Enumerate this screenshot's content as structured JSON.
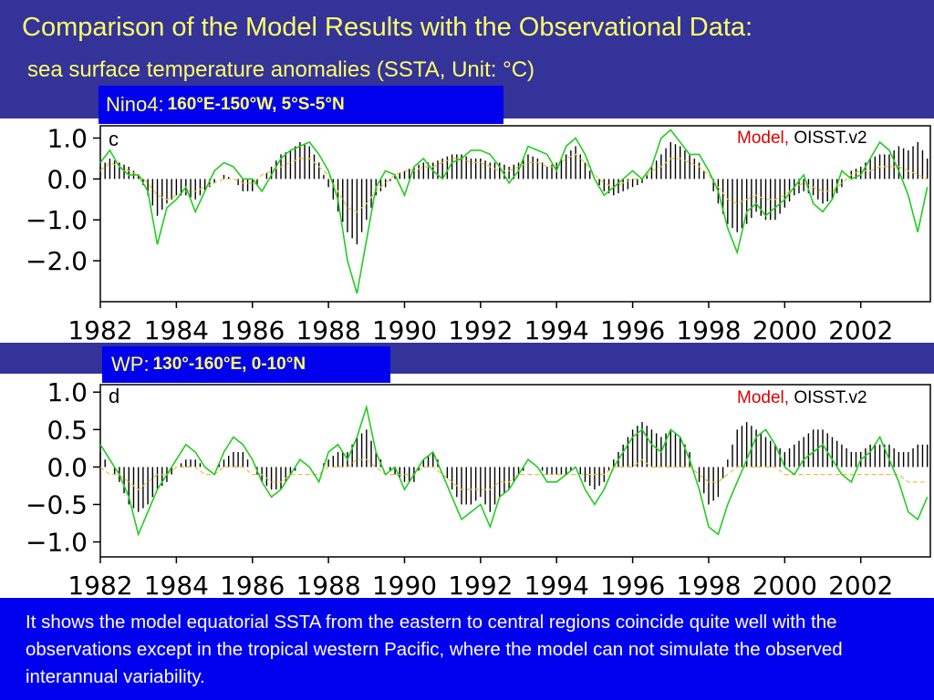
{
  "header": {
    "title": "Comparison of the Model Results with the Observational Data:",
    "subtitle": "sea surface temperature anomalies (SSTA, Unit: °C)"
  },
  "footer": {
    "text": "It shows the model equatorial SSTA from the eastern to central regions coincide quite well with the observations except in the tropical western Pacific, where the model can not simulate the observed interannual variability."
  },
  "colors": {
    "header_bg": "#33339a",
    "box_bg": "#0000ee",
    "title_text": "#ffff66",
    "model_label": "#dd0000",
    "obs_line": "#22cc22",
    "climatology_dash": "#e8c040",
    "bars": "#000000"
  },
  "chart_data": [
    {
      "type": "bar",
      "region_name": "Nino4:",
      "region_coords": "160°E-150°W, 5°S-5°N",
      "panel_letter": "c",
      "legend": {
        "model": "Model,",
        "obs": "OISST.v2"
      },
      "x_ticks": [
        "1982",
        "1984",
        "1986",
        "1988",
        "1990",
        "1992",
        "1994",
        "1996",
        "1998",
        "2000",
        "2002"
      ],
      "y_ticks": [
        1.0,
        0.0,
        -1.0,
        -2.0
      ],
      "y_tick_labels": [
        "1.0",
        "0.0",
        "−1.0",
        "−2.0"
      ],
      "xlim": [
        1982,
        2003.83
      ],
      "ylim": [
        -3.0,
        1.3
      ],
      "grid": false,
      "bar_step_years": 0.25,
      "obs_x": [
        1982,
        1982.25,
        1982.5,
        1982.75,
        1983,
        1983.25,
        1983.5,
        1983.75,
        1984,
        1984.25,
        1984.5,
        1984.75,
        1985,
        1985.25,
        1985.5,
        1985.75,
        1986,
        1986.25,
        1986.5,
        1986.75,
        1987,
        1987.25,
        1987.5,
        1987.75,
        1988,
        1988.25,
        1988.5,
        1988.75,
        1989,
        1989.25,
        1989.5,
        1989.75,
        1990,
        1990.25,
        1990.5,
        1990.75,
        1991,
        1991.25,
        1991.5,
        1991.75,
        1992,
        1992.25,
        1992.5,
        1992.75,
        1993,
        1993.25,
        1993.5,
        1993.75,
        1994,
        1994.25,
        1994.5,
        1994.75,
        1995,
        1995.25,
        1995.5,
        1995.75,
        1996,
        1996.25,
        1996.5,
        1996.75,
        1997,
        1997.25,
        1997.5,
        1997.75,
        1998,
        1998.25,
        1998.5,
        1998.75,
        1999,
        1999.25,
        1999.5,
        1999.75,
        2000,
        2000.25,
        2000.5,
        2000.75,
        2001,
        2001.25,
        2001.5,
        2001.75,
        2002,
        2002.25,
        2002.5,
        2002.75,
        2003,
        2003.25,
        2003.5,
        2003.75
      ],
      "obs_y": [
        0.4,
        0.7,
        0.3,
        0.1,
        0.1,
        -0.3,
        -1.6,
        -0.7,
        -0.5,
        -0.2,
        -0.8,
        -0.3,
        0.2,
        0.4,
        0.3,
        0.0,
        0.0,
        -0.3,
        0.1,
        0.5,
        0.7,
        0.8,
        0.9,
        0.6,
        0.2,
        -0.5,
        -2.0,
        -2.8,
        -1.5,
        -0.2,
        0.2,
        0.1,
        -0.4,
        0.3,
        0.5,
        0.2,
        0.0,
        0.4,
        0.5,
        0.7,
        0.7,
        0.6,
        0.3,
        -0.1,
        0.2,
        0.8,
        0.7,
        0.6,
        0.2,
        0.8,
        1.0,
        0.6,
        0.0,
        -0.4,
        -0.2,
        0.0,
        0.2,
        0.0,
        0.3,
        1.0,
        1.2,
        0.9,
        0.6,
        0.6,
        0.2,
        -0.3,
        -1.2,
        -1.8,
        -0.8,
        -0.6,
        -0.9,
        -0.7,
        -0.5,
        -0.2,
        0.1,
        -0.6,
        -0.8,
        -0.5,
        0.2,
        0.0,
        0.1,
        0.5,
        0.9,
        0.7,
        0.2,
        -0.4,
        -1.3,
        -0.2
      ],
      "model_y": [
        0.3,
        0.5,
        0.4,
        0.3,
        0.1,
        -0.4,
        -0.9,
        -0.6,
        -0.4,
        -0.4,
        -0.5,
        -0.3,
        -0.1,
        0.1,
        0.0,
        -0.3,
        -0.3,
        0.0,
        0.3,
        0.6,
        0.7,
        0.9,
        0.8,
        0.4,
        -0.2,
        -0.8,
        -1.3,
        -1.6,
        -1.0,
        -0.4,
        -0.2,
        0.1,
        0.2,
        0.3,
        0.4,
        0.4,
        0.5,
        0.6,
        0.6,
        0.5,
        0.5,
        0.4,
        0.4,
        0.3,
        0.4,
        0.6,
        0.5,
        0.3,
        0.4,
        0.6,
        0.8,
        0.4,
        0.0,
        -0.3,
        -0.4,
        -0.3,
        -0.2,
        -0.1,
        0.3,
        0.6,
        0.9,
        0.8,
        0.6,
        0.4,
        0.0,
        -0.6,
        -1.1,
        -1.3,
        -1.1,
        -0.8,
        -1.0,
        -1.0,
        -0.7,
        -0.4,
        -0.3,
        -0.4,
        -0.6,
        -0.5,
        -0.2,
        0.2,
        0.3,
        0.5,
        0.6,
        0.6,
        0.8,
        0.7,
        0.9,
        0.5
      ],
      "clim_y": [
        0.2,
        0.4,
        0.3,
        0.2,
        0.1,
        -0.1,
        -0.4,
        -0.5,
        -0.4,
        -0.3,
        -0.3,
        -0.2,
        -0.1,
        0.0,
        0.0,
        -0.1,
        -0.1,
        0.1,
        0.2,
        0.3,
        0.4,
        0.5,
        0.5,
        0.3,
        0.1,
        -0.3,
        -0.7,
        -0.8,
        -0.6,
        -0.3,
        -0.1,
        0.1,
        0.2,
        0.2,
        0.3,
        0.3,
        0.4,
        0.5,
        0.5,
        0.4,
        0.4,
        0.3,
        0.2,
        0.2,
        0.3,
        0.4,
        0.4,
        0.3,
        0.3,
        0.5,
        0.6,
        0.4,
        0.1,
        -0.1,
        -0.2,
        -0.1,
        0.0,
        0.0,
        0.2,
        0.3,
        0.5,
        0.5,
        0.4,
        0.3,
        0.1,
        -0.2,
        -0.5,
        -0.6,
        -0.5,
        -0.4,
        -0.5,
        -0.5,
        -0.4,
        -0.2,
        -0.1,
        -0.2,
        -0.3,
        -0.3,
        -0.1,
        0.1,
        0.2,
        0.2,
        0.3,
        0.3,
        0.3,
        0.2,
        0.1,
        0.0
      ]
    },
    {
      "type": "bar",
      "region_name": "WP:",
      "region_coords": "130°-160°E, 0-10°N",
      "panel_letter": "d",
      "legend": {
        "model": "Model,",
        "obs": "OISST.v2"
      },
      "x_ticks": [
        "1982",
        "1984",
        "1986",
        "1988",
        "1990",
        "1992",
        "1994",
        "1996",
        "1998",
        "2000",
        "2002"
      ],
      "y_ticks": [
        1.0,
        0.5,
        0.0,
        -0.5,
        -1.0
      ],
      "y_tick_labels": [
        "1.0",
        "0.5",
        "0.0",
        "−0.5",
        "−1.0"
      ],
      "xlim": [
        1982,
        2003.83
      ],
      "ylim": [
        -1.2,
        1.1
      ],
      "grid": false,
      "bar_step_years": 0.25,
      "obs_x": [
        1982,
        1982.25,
        1982.5,
        1982.75,
        1983,
        1983.25,
        1983.5,
        1983.75,
        1984,
        1984.25,
        1984.5,
        1984.75,
        1985,
        1985.25,
        1985.5,
        1985.75,
        1986,
        1986.25,
        1986.5,
        1986.75,
        1987,
        1987.25,
        1987.5,
        1987.75,
        1988,
        1988.25,
        1988.5,
        1988.75,
        1989,
        1989.25,
        1989.5,
        1989.75,
        1990,
        1990.25,
        1990.5,
        1990.75,
        1991,
        1991.25,
        1991.5,
        1991.75,
        1992,
        1992.25,
        1992.5,
        1992.75,
        1993,
        1993.25,
        1993.5,
        1993.75,
        1994,
        1994.25,
        1994.5,
        1994.75,
        1995,
        1995.25,
        1995.5,
        1995.75,
        1996,
        1996.25,
        1996.5,
        1996.75,
        1997,
        1997.25,
        1997.5,
        1997.75,
        1998,
        1998.25,
        1998.5,
        1998.75,
        1999,
        1999.25,
        1999.5,
        1999.75,
        2000,
        2000.25,
        2000.5,
        2000.75,
        2001,
        2001.25,
        2001.5,
        2001.75,
        2002,
        2002.25,
        2002.5,
        2002.75,
        2003,
        2003.25,
        2003.5,
        2003.75
      ],
      "obs_y": [
        0.3,
        0.1,
        -0.1,
        -0.4,
        -0.9,
        -0.6,
        -0.3,
        -0.1,
        0.1,
        0.3,
        0.2,
        0.0,
        -0.1,
        0.2,
        0.4,
        0.3,
        0.1,
        -0.2,
        -0.4,
        -0.3,
        -0.1,
        0.1,
        0.0,
        -0.2,
        0.2,
        0.3,
        0.1,
        0.4,
        0.8,
        0.2,
        -0.1,
        0.0,
        -0.3,
        -0.1,
        0.1,
        0.2,
        -0.1,
        -0.4,
        -0.7,
        -0.6,
        -0.5,
        -0.8,
        -0.4,
        -0.3,
        -0.1,
        0.1,
        0.0,
        -0.2,
        -0.2,
        -0.1,
        0.0,
        -0.3,
        -0.5,
        -0.3,
        0.0,
        0.2,
        0.4,
        0.5,
        0.3,
        0.2,
        0.5,
        0.4,
        0.1,
        -0.3,
        -0.8,
        -0.9,
        -0.5,
        -0.2,
        0.1,
        0.4,
        0.5,
        0.3,
        0.0,
        -0.1,
        0.1,
        0.2,
        0.3,
        0.1,
        -0.1,
        -0.2,
        0.1,
        0.2,
        0.4,
        0.1,
        -0.2,
        -0.6,
        -0.7,
        -0.4
      ],
      "model_y": [
        0.2,
        0.0,
        -0.2,
        -0.5,
        -0.6,
        -0.5,
        -0.3,
        -0.2,
        0.0,
        0.1,
        0.1,
        0.0,
        0.0,
        0.1,
        0.2,
        0.2,
        0.0,
        -0.2,
        -0.3,
        -0.3,
        -0.1,
        0.0,
        0.0,
        0.0,
        0.1,
        0.2,
        0.2,
        0.4,
        0.5,
        0.2,
        0.0,
        -0.1,
        -0.2,
        -0.2,
        0.1,
        0.2,
        0.0,
        -0.3,
        -0.5,
        -0.5,
        -0.4,
        -0.6,
        -0.4,
        -0.3,
        -0.1,
        0.0,
        0.0,
        -0.1,
        -0.1,
        -0.1,
        0.0,
        -0.2,
        -0.3,
        -0.2,
        0.1,
        0.3,
        0.5,
        0.6,
        0.5,
        0.4,
        0.5,
        0.4,
        0.2,
        -0.2,
        -0.5,
        -0.4,
        0.1,
        0.5,
        0.6,
        0.5,
        0.4,
        0.3,
        0.2,
        0.3,
        0.4,
        0.5,
        0.5,
        0.4,
        0.3,
        0.2,
        0.2,
        0.3,
        0.3,
        0.3,
        0.2,
        0.2,
        0.3,
        0.3
      ],
      "clim_y": [
        0.0,
        -0.1,
        -0.1,
        -0.2,
        -0.3,
        -0.2,
        -0.1,
        -0.1,
        0.0,
        0.0,
        0.0,
        -0.1,
        -0.1,
        0.0,
        0.0,
        0.0,
        -0.1,
        -0.1,
        -0.2,
        -0.2,
        -0.1,
        -0.1,
        -0.1,
        -0.1,
        0.0,
        0.0,
        0.0,
        0.1,
        0.1,
        0.0,
        -0.1,
        -0.1,
        -0.1,
        -0.1,
        0.0,
        0.0,
        -0.1,
        -0.2,
        -0.3,
        -0.3,
        -0.3,
        -0.3,
        -0.2,
        -0.2,
        -0.1,
        -0.1,
        -0.1,
        -0.1,
        -0.1,
        -0.1,
        -0.1,
        -0.1,
        -0.1,
        -0.1,
        0.0,
        0.0,
        0.0,
        0.1,
        0.0,
        0.0,
        0.0,
        0.0,
        0.0,
        -0.1,
        -0.2,
        -0.2,
        -0.1,
        0.0,
        0.0,
        0.0,
        0.0,
        0.0,
        -0.1,
        -0.1,
        -0.1,
        -0.1,
        -0.1,
        -0.1,
        -0.1,
        -0.1,
        -0.1,
        -0.1,
        -0.1,
        -0.1,
        -0.1,
        -0.2,
        -0.2,
        -0.2
      ]
    }
  ]
}
